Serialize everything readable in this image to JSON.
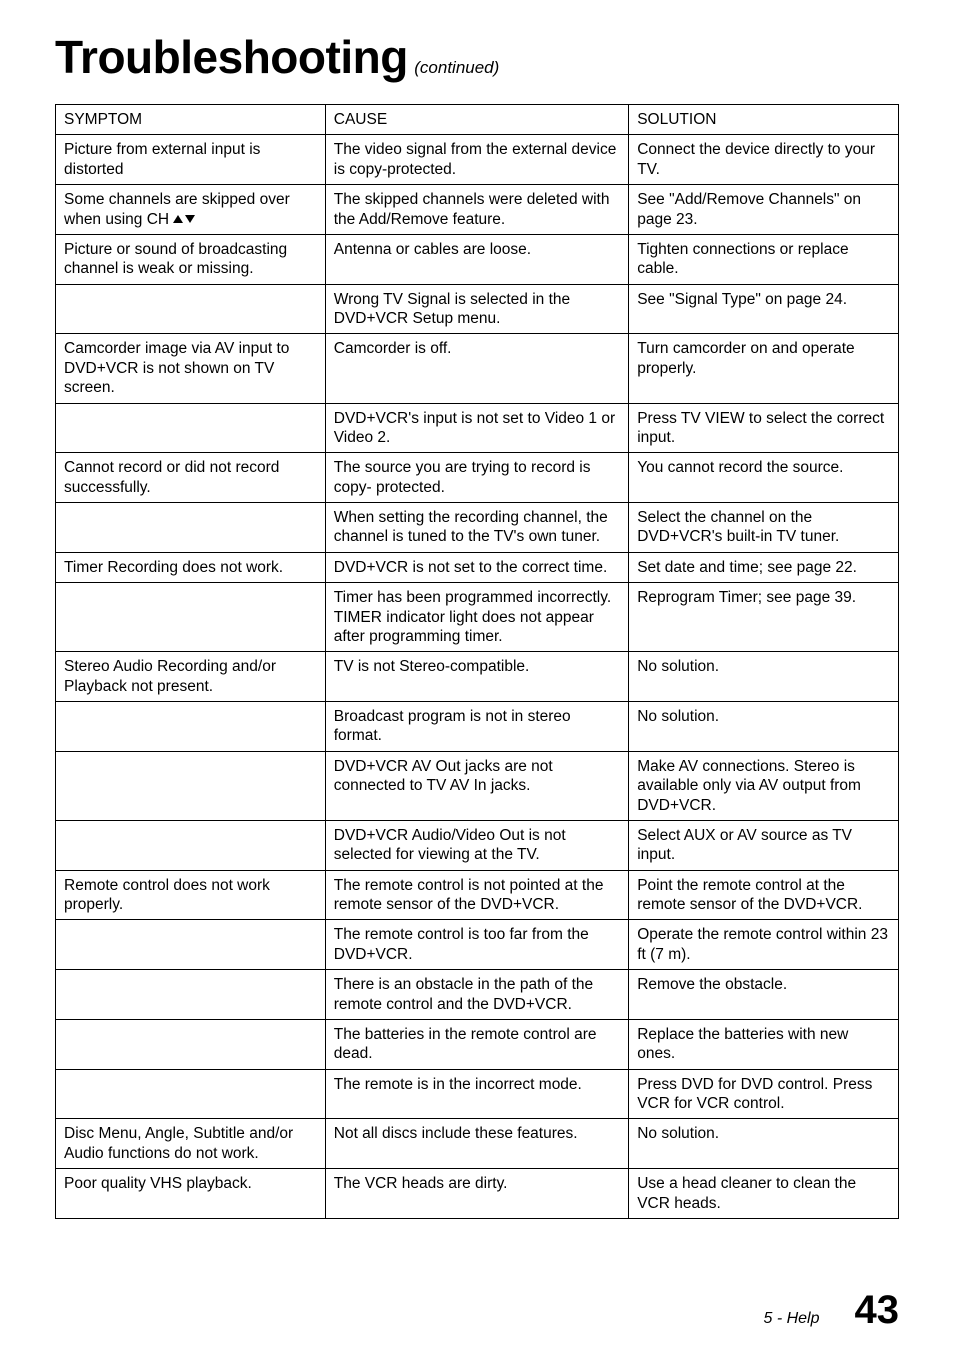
{
  "title": "Troubleshooting",
  "title_suffix": "(continued)",
  "headers": {
    "symptom": "SYMPTOM",
    "cause": "CAUSE",
    "solution": "SOLUTION"
  },
  "rows": [
    {
      "symptom": "Picture from external input is distorted",
      "cause": "The video signal from the external device is copy-protected.",
      "solution": "Connect the device directly to your TV."
    },
    {
      "symptom": "Some channels are skipped over when using CH ",
      "symptom_arrows": true,
      "cause": "The skipped channels were deleted with the Add/Remove feature.",
      "solution": "See \"Add/Remove Channels\" on page 23."
    },
    {
      "symptom": "Picture or sound of broadcasting channel is weak or missing.",
      "cause": "Antenna or cables are loose.",
      "solution": "Tighten connections or replace cable."
    },
    {
      "symptom": "",
      "cause": "Wrong TV Signal is selected in the DVD+VCR Setup menu.",
      "solution": "See \"Signal Type\" on page 24."
    },
    {
      "symptom": "Camcorder image via AV input to DVD+VCR is not shown on TV screen.",
      "cause": "Camcorder is off.",
      "solution": "Turn camcorder on and operate properly."
    },
    {
      "symptom": "",
      "cause": "DVD+VCR's input is not set to Video 1 or Video 2.",
      "solution": "Press TV VIEW to select the correct input."
    },
    {
      "symptom": "Cannot record or did not record successfully.",
      "cause": "The source you are trying to record is copy- protected.",
      "solution": "You cannot record the source."
    },
    {
      "symptom": "",
      "cause": "When setting the recording channel, the channel is tuned to the TV's own tuner.",
      "solution": "Select the channel on the DVD+VCR's built-in TV tuner."
    },
    {
      "symptom": "Timer Recording does not work.",
      "cause": "DVD+VCR is not set to the correct time.",
      "solution": "Set date and time; see page 22."
    },
    {
      "symptom": "",
      "cause": "Timer has been programmed incorrectly. TIMER indicator light does not appear after programming timer.",
      "solution": "Reprogram Timer; see page 39."
    },
    {
      "symptom": "Stereo Audio Recording and/or Playback not present.",
      "cause": "TV is not Stereo-compatible.",
      "solution": "No solution."
    },
    {
      "symptom": "",
      "cause": "Broadcast program is not in stereo format.",
      "solution": "No solution."
    },
    {
      "symptom": "",
      "cause": "DVD+VCR AV Out jacks are not connected to TV AV In jacks.",
      "solution": "Make AV connections. Stereo is available only via AV output from DVD+VCR."
    },
    {
      "symptom": "",
      "cause": "DVD+VCR Audio/Video Out is not selected for viewing at the TV.",
      "solution": "Select AUX or AV source as TV input."
    },
    {
      "symptom": "Remote control does not work properly.",
      "cause": "The remote control is not pointed at the remote sensor of the DVD+VCR.",
      "solution": "Point the remote control at the remote sensor of the DVD+VCR."
    },
    {
      "symptom": "",
      "cause": "The remote control is too far from the DVD+VCR.",
      "solution": "Operate the remote control within 23 ft (7 m)."
    },
    {
      "symptom": "",
      "cause": "There is an obstacle in the path of the remote control and the DVD+VCR.",
      "solution": "Remove the obstacle."
    },
    {
      "symptom": "",
      "cause": "The batteries in the remote control are dead.",
      "solution": "Replace the batteries with new ones."
    },
    {
      "symptom": "",
      "cause": "The remote is in the incorrect mode.",
      "solution": "Press DVD for DVD control. Press VCR for VCR control."
    },
    {
      "symptom": "Disc Menu, Angle, Subtitle and/or Audio functions do not work.",
      "cause": "Not all discs include these features.",
      "solution": "No solution."
    },
    {
      "symptom": "Poor quality VHS playback.",
      "cause": "The VCR heads are dirty.",
      "solution": "Use a head cleaner to clean the VCR heads."
    }
  ],
  "footer": {
    "section": "5 - Help",
    "page": "43"
  }
}
